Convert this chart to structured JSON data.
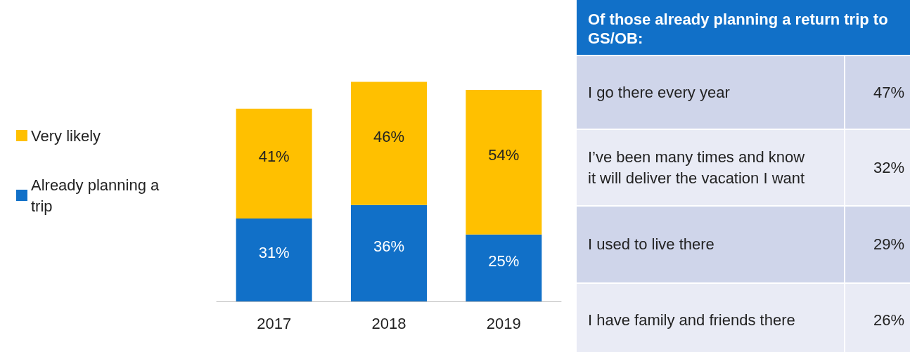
{
  "chart_data": [
    {
      "type": "bar",
      "stacked": true,
      "categories": [
        "2017",
        "2018",
        "2019"
      ],
      "series": [
        {
          "name": "Already planning a trip",
          "color": "#1170c8",
          "values": [
            31,
            36,
            25
          ],
          "value_labels": [
            "31%",
            "36%",
            "25%"
          ]
        },
        {
          "name": "Very likely",
          "color": "#ffc000",
          "values": [
            41,
            46,
            54
          ],
          "value_labels": [
            "41%",
            "46%",
            "54%"
          ]
        }
      ],
      "legend": "left"
    },
    {
      "type": "other",
      "title": "Of those already planning a return trip to GS/OB:",
      "categories": [
        "I go there every year",
        "I’ve been many times and know it will deliver the vacation I want",
        "I used to live there",
        "I have family and friends there"
      ],
      "value_labels": [
        "47%",
        "32%",
        "29%",
        "26%"
      ]
    }
  ]
}
